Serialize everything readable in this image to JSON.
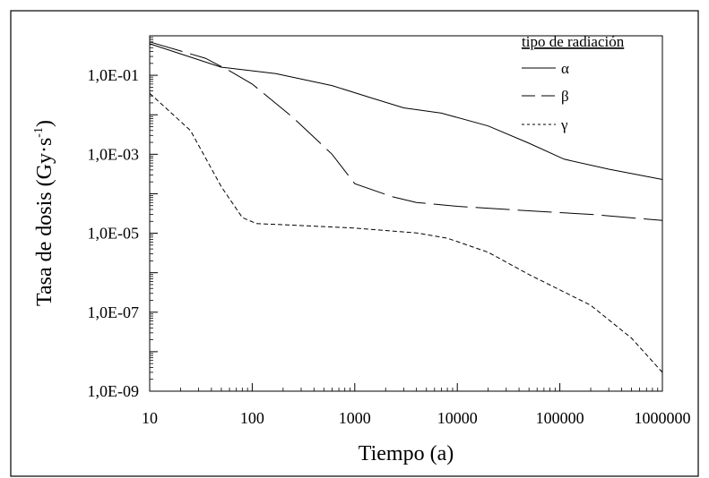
{
  "chart_data": {
    "type": "line",
    "xscale": "log",
    "yscale": "log",
    "xlim": [
      10,
      1000000
    ],
    "ylim": [
      1e-09,
      1
    ],
    "xlabel": "Tiempo (a)",
    "ylabel_main": "Tasa de dosis (Gy·s",
    "ylabel_sup": "-1",
    "ylabel_close": ")",
    "x_ticks": [
      {
        "value": 10,
        "label": "10"
      },
      {
        "value": 100,
        "label": "100"
      },
      {
        "value": 1000,
        "label": "1000"
      },
      {
        "value": 10000,
        "label": "10000"
      },
      {
        "value": 100000,
        "label": "100000"
      },
      {
        "value": 1000000,
        "label": "1000000"
      }
    ],
    "y_ticks": [
      {
        "value": 1e-09,
        "label": "1,0E-09"
      },
      {
        "value": 1e-07,
        "label": "1,0E-07"
      },
      {
        "value": 1e-05,
        "label": "1,0E-05"
      },
      {
        "value": 0.001,
        "label": "1,0E-03"
      },
      {
        "value": 0.1,
        "label": "1,0E-01"
      }
    ],
    "legend_title": "tipo de radiación",
    "legend_position": "top-right",
    "series": [
      {
        "name": "α",
        "dash": "solid",
        "points": [
          [
            10,
            0.63
          ],
          [
            50,
            0.16
          ],
          [
            170,
            0.11
          ],
          [
            600,
            0.055
          ],
          [
            1500,
            0.026
          ],
          [
            3000,
            0.015
          ],
          [
            7000,
            0.011
          ],
          [
            20000,
            0.0052
          ],
          [
            50000,
            0.0019
          ],
          [
            110000,
            0.00075
          ],
          [
            300000,
            0.00042
          ],
          [
            1000000,
            0.00023
          ]
        ]
      },
      {
        "name": "β",
        "dash": "long",
        "points": [
          [
            10,
            0.7
          ],
          [
            35,
            0.27
          ],
          [
            60,
            0.13
          ],
          [
            100,
            0.06
          ],
          [
            250,
            0.0085
          ],
          [
            600,
            0.001
          ],
          [
            1000,
            0.00018
          ],
          [
            2300,
            8.5e-05
          ],
          [
            4000,
            6e-05
          ],
          [
            10000,
            4.8e-05
          ],
          [
            50000,
            3.7e-05
          ],
          [
            200000,
            3e-05
          ],
          [
            1000000,
            2.1e-05
          ]
        ]
      },
      {
        "name": "γ",
        "dash": "short",
        "points": [
          [
            10,
            0.035
          ],
          [
            25,
            0.004
          ],
          [
            50,
            0.00015
          ],
          [
            80,
            2.5e-05
          ],
          [
            110,
            1.75e-05
          ],
          [
            200,
            1.65e-05
          ],
          [
            1000,
            1.35e-05
          ],
          [
            4000,
            1.02e-05
          ],
          [
            8000,
            7.5e-06
          ],
          [
            20000,
            3.3e-06
          ],
          [
            50000,
            9e-07
          ],
          [
            200000,
            1.5e-07
          ],
          [
            500000,
            2.2e-08
          ],
          [
            1000000,
            3e-09
          ]
        ]
      }
    ]
  }
}
